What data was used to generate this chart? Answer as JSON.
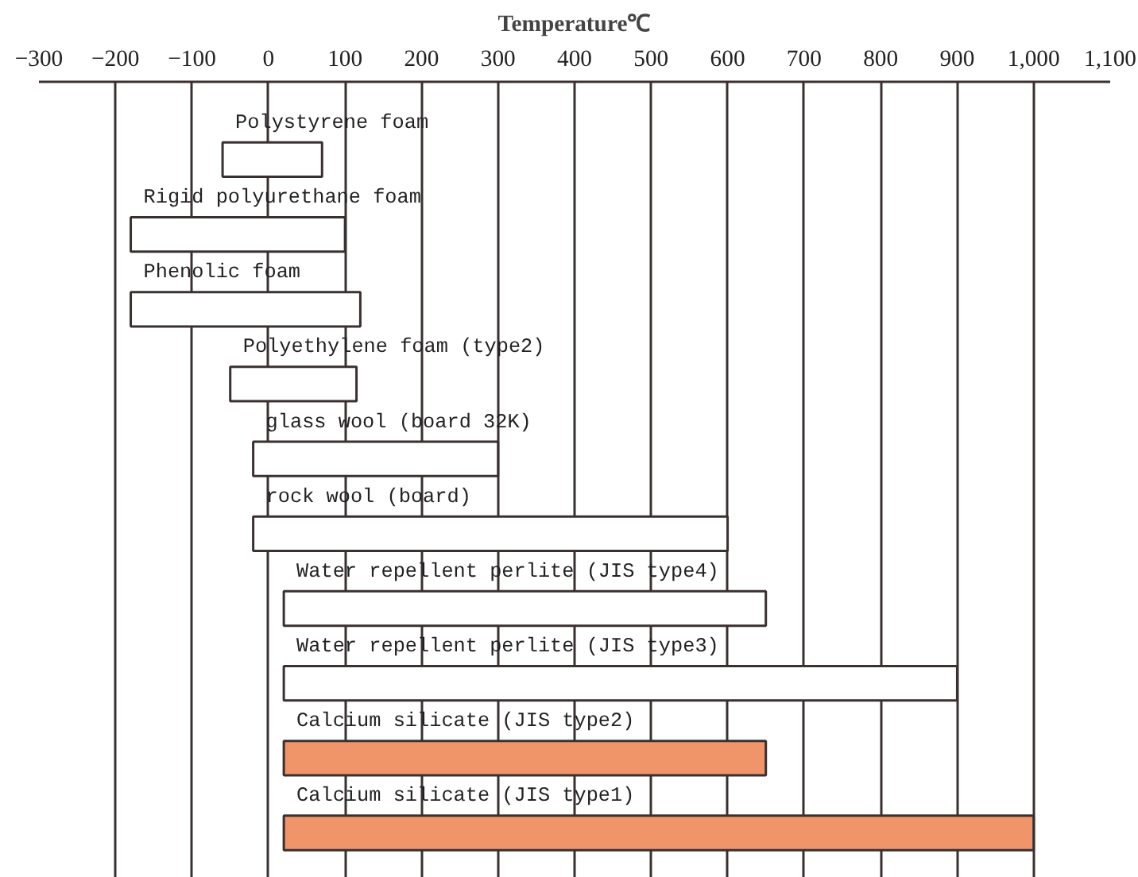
{
  "chart_data": {
    "type": "bar",
    "orientation": "horizontal",
    "title": "Temperature℃",
    "categories": [
      "Polystyrene foam",
      "Rigid polyurethane foam",
      "Phenolic foam",
      "Polyethylene foam (type2)",
      "glass wool (board 32K)",
      "rock wool (board)",
      "Water repellent perlite (JIS type4)",
      "Water repellent perlite (JIS type3)",
      "Calcium silicate (JIS type2)",
      "Calcium silicate (JIS type1)"
    ],
    "base": [
      -60,
      -180,
      -180,
      -50,
      -20,
      -20,
      20,
      20,
      20,
      20
    ],
    "values": [
      130,
      280,
      300,
      165,
      320,
      620,
      630,
      880,
      630,
      980
    ],
    "colors": [
      "#ffffff",
      "#ffffff",
      "#ffffff",
      "#ffffff",
      "#ffffff",
      "#ffffff",
      "#ffffff",
      "#ffffff",
      "#f0956a",
      "#f0956a"
    ],
    "xlim": [
      -300,
      1100
    ],
    "xticks": [
      -300,
      -200,
      -100,
      0,
      100,
      200,
      300,
      400,
      500,
      600,
      700,
      800,
      900,
      {
        "value": 1000,
        "label": "1,000"
      },
      {
        "value": 1100,
        "label": "1,100"
      }
    ],
    "grid": "x"
  }
}
